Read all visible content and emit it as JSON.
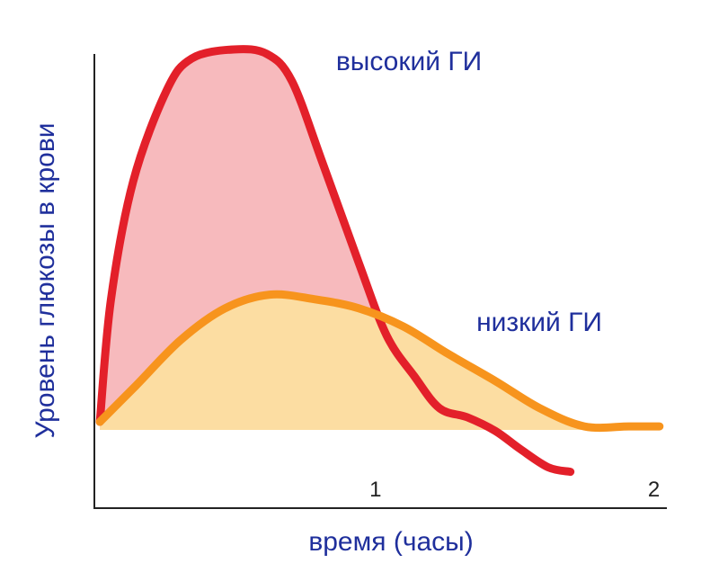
{
  "chart_data": {
    "type": "area",
    "xlabel": "время (часы)",
    "ylabel": "Уровень глюкозы в крови",
    "xlim": [
      0,
      2.04
    ],
    "ylim": [
      0,
      100
    ],
    "xticks": [
      1,
      2
    ],
    "baseline": 17,
    "series": [
      {
        "name": "высокий ГИ",
        "color": "#e3202a",
        "fill": "#f7babd",
        "x": [
          0.01,
          0.05,
          0.13,
          0.25,
          0.34,
          0.49,
          0.61,
          0.7,
          0.81,
          0.94,
          1.04,
          1.14,
          1.23,
          1.33,
          1.43,
          1.52,
          1.62,
          1.7
        ],
        "values": [
          19,
          46,
          72,
          92,
          99,
          101,
          100,
          94,
          76,
          54,
          38,
          29,
          22,
          20,
          17,
          13,
          9,
          8
        ]
      },
      {
        "name": "низкий ГИ",
        "color": "#f7941d",
        "fill": "#fcdda2",
        "x": [
          0.01,
          0.14,
          0.3,
          0.46,
          0.62,
          0.78,
          0.94,
          1.1,
          1.26,
          1.43,
          1.59,
          1.75,
          1.91,
          2.02
        ],
        "values": [
          19,
          27,
          37,
          44,
          47,
          46,
          44,
          40,
          34,
          28,
          22,
          18,
          18,
          18
        ]
      }
    ]
  }
}
